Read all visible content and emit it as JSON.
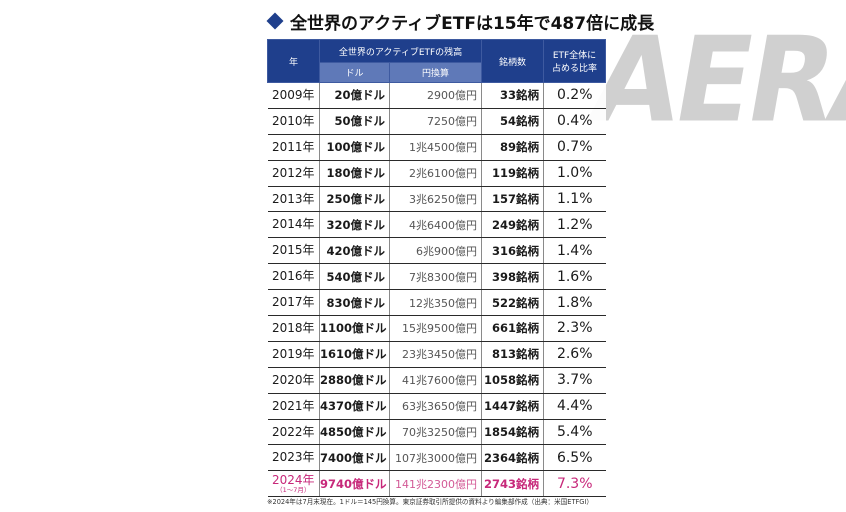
{
  "title": "全世界のアクティブETFは15年で487倍に成長",
  "watermark": "AERA",
  "header": {
    "year": "年",
    "balance_group": "全世界のアクティブETFの残高",
    "usd": "ドル",
    "jpy": "円換算",
    "count": "銘柄数",
    "share_line1": "ETF全体に",
    "share_line2": "占める比率"
  },
  "rows": [
    {
      "year": "2009年",
      "usd": "20億ドル",
      "jpy": "2900億円",
      "count": "33銘柄",
      "share": "0.2%"
    },
    {
      "year": "2010年",
      "usd": "50億ドル",
      "jpy": "7250億円",
      "count": "54銘柄",
      "share": "0.4%"
    },
    {
      "year": "2011年",
      "usd": "100億ドル",
      "jpy": "1兆4500億円",
      "count": "89銘柄",
      "share": "0.7%"
    },
    {
      "year": "2012年",
      "usd": "180億ドル",
      "jpy": "2兆6100億円",
      "count": "119銘柄",
      "share": "1.0%"
    },
    {
      "year": "2013年",
      "usd": "250億ドル",
      "jpy": "3兆6250億円",
      "count": "157銘柄",
      "share": "1.1%"
    },
    {
      "year": "2014年",
      "usd": "320億ドル",
      "jpy": "4兆6400億円",
      "count": "249銘柄",
      "share": "1.2%"
    },
    {
      "year": "2015年",
      "usd": "420億ドル",
      "jpy": "6兆900億円",
      "count": "316銘柄",
      "share": "1.4%"
    },
    {
      "year": "2016年",
      "usd": "540億ドル",
      "jpy": "7兆8300億円",
      "count": "398銘柄",
      "share": "1.6%"
    },
    {
      "year": "2017年",
      "usd": "830億ドル",
      "jpy": "12兆350億円",
      "count": "522銘柄",
      "share": "1.8%"
    },
    {
      "year": "2018年",
      "usd": "1100億ドル",
      "jpy": "15兆9500億円",
      "count": "661銘柄",
      "share": "2.3%"
    },
    {
      "year": "2019年",
      "usd": "1610億ドル",
      "jpy": "23兆3450億円",
      "count": "813銘柄",
      "share": "2.6%"
    },
    {
      "year": "2020年",
      "usd": "2880億ドル",
      "jpy": "41兆7600億円",
      "count": "1058銘柄",
      "share": "3.7%"
    },
    {
      "year": "2021年",
      "usd": "4370億ドル",
      "jpy": "63兆3650億円",
      "count": "1447銘柄",
      "share": "4.4%"
    },
    {
      "year": "2022年",
      "usd": "4850億ドル",
      "jpy": "70兆3250億円",
      "count": "1854銘柄",
      "share": "5.4%"
    },
    {
      "year": "2023年",
      "usd": "7400億ドル",
      "jpy": "107兆3000億円",
      "count": "2364銘柄",
      "share": "6.5%"
    },
    {
      "year": "2024年",
      "year_note": "（1〜7月）",
      "usd": "9740億ドル",
      "jpy": "141兆2300億円",
      "count": "2743銘柄",
      "share": "7.3%",
      "highlight": true
    }
  ],
  "footnote": "※2024年は7月末現在。1ドル＝145円換算。東京証券取引所提供の資料より編集部作成（出典：米国ETFGI）",
  "colors": {
    "header_bg": "#1f3f8c",
    "subheader_bg": "#5f79b8",
    "highlight": "#c7287a",
    "watermark": "#c8c8c8"
  }
}
